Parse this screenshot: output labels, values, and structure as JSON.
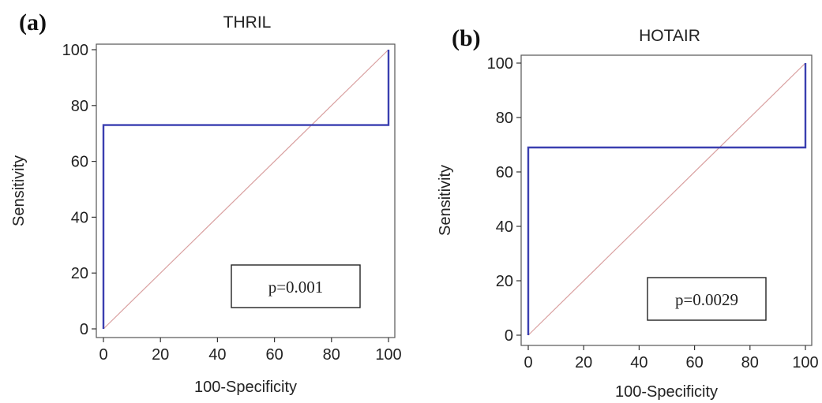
{
  "chart_data": [
    {
      "type": "line",
      "panel": "(a)",
      "title": "THRIL",
      "xlabel": "100-Specificity",
      "ylabel": "Sensitivity",
      "xlim": [
        0,
        100
      ],
      "ylim": [
        0,
        100
      ],
      "xticks": [
        0,
        20,
        40,
        60,
        80,
        100
      ],
      "yticks": [
        0,
        20,
        40,
        60,
        80,
        100
      ],
      "series": [
        {
          "x": [
            0,
            0,
            100,
            100
          ],
          "y": [
            0,
            73,
            73,
            100
          ],
          "color": "#3a3fb0"
        },
        {
          "x": [
            0,
            100
          ],
          "y": [
            0,
            100
          ],
          "color": "#d9a0a0"
        }
      ],
      "annotation": "p=0.001"
    },
    {
      "type": "line",
      "panel": "(b)",
      "title": "HOTAIR",
      "xlabel": "100-Specificity",
      "ylabel": "Sensitivity",
      "xlim": [
        0,
        100
      ],
      "ylim": [
        0,
        100
      ],
      "xticks": [
        0,
        20,
        40,
        60,
        80,
        100
      ],
      "yticks": [
        0,
        20,
        40,
        60,
        80,
        100
      ],
      "series": [
        {
          "x": [
            0,
            0,
            100,
            100
          ],
          "y": [
            0,
            69,
            69,
            100
          ],
          "color": "#3a3fb0"
        },
        {
          "x": [
            0,
            100
          ],
          "y": [
            0,
            100
          ],
          "color": "#d9a0a0"
        }
      ],
      "annotation": "p=0.0029"
    }
  ]
}
